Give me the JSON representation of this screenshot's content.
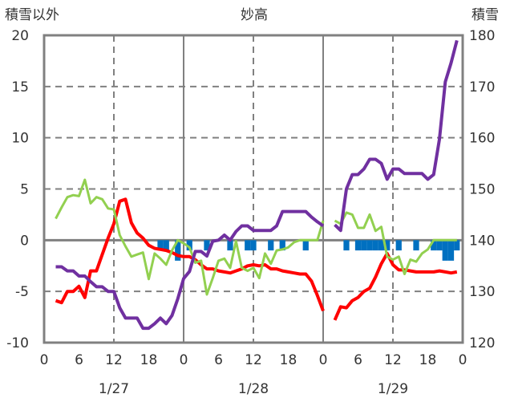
{
  "chart_data": {
    "type": "line",
    "title": "妙高",
    "ylabel_left": "積雪以外",
    "ylabel_right": "積雪",
    "ylim_left": [
      -10,
      20
    ],
    "ylim_right": [
      120,
      180
    ],
    "yticks_left": [
      "20",
      "15",
      "10",
      "5",
      "0",
      "-5",
      "-10"
    ],
    "yticks_right": [
      "180",
      "170",
      "160",
      "150",
      "140",
      "130",
      "120"
    ],
    "xlim_hours": [
      0,
      72
    ],
    "xtick_labels": [
      "0",
      "6",
      "12",
      "18",
      "0",
      "6",
      "12",
      "18",
      "0",
      "6",
      "12",
      "18",
      "0"
    ],
    "date_labels": [
      "1/27",
      "1/28",
      "1/29"
    ],
    "grid": true,
    "x_hours": [
      2,
      3,
      4,
      5,
      6,
      7,
      8,
      9,
      10,
      11,
      12,
      13,
      14,
      15,
      16,
      17,
      18,
      19,
      20,
      21,
      22,
      23,
      24,
      25,
      26,
      27,
      28,
      29,
      30,
      31,
      32,
      33,
      34,
      35,
      36,
      37,
      38,
      39,
      40,
      41,
      42,
      43,
      44,
      45,
      46,
      47,
      48,
      49,
      50,
      51,
      52,
      53,
      54,
      55,
      56,
      57,
      58,
      59,
      60,
      61,
      62,
      63,
      64,
      65,
      66,
      67,
      68,
      69,
      70,
      71
    ],
    "series": [
      {
        "name": "temperature",
        "axis": "left",
        "color": "#ff0000",
        "values": [
          -5.9,
          -6.1,
          -5.0,
          -5.0,
          -4.5,
          -5.6,
          -3.0,
          -3.0,
          -1.4,
          0.2,
          1.6,
          3.8,
          4.0,
          1.7,
          0.7,
          0.2,
          -0.5,
          -0.8,
          -0.9,
          -1.0,
          -1.2,
          -1.5,
          -1.6,
          -1.6,
          -1.9,
          -2.4,
          -2.8,
          -2.8,
          -3.0,
          -3.1,
          -3.2,
          -3.0,
          -2.8,
          -2.5,
          -2.4,
          -2.5,
          -2.4,
          -2.8,
          -2.8,
          -3.0,
          -3.1,
          -3.2,
          -3.3,
          -3.3,
          -4.0,
          -5.4,
          -6.9,
          null,
          -7.8,
          -6.5,
          -6.6,
          -5.9,
          -5.6,
          -5.0,
          -4.7,
          -3.6,
          -2.3,
          -1.3,
          -2.4,
          -2.9,
          -2.9,
          -3.0,
          -3.1,
          -3.1,
          -3.1,
          -3.1,
          -3.0,
          -3.1,
          -3.2,
          -3.1
        ]
      },
      {
        "name": "series-green",
        "axis": "left",
        "color": "#92d050",
        "values": [
          2.1,
          3.2,
          4.2,
          4.4,
          4.3,
          5.9,
          3.6,
          4.2,
          4.0,
          3.1,
          3.0,
          0.5,
          -0.6,
          -1.6,
          -1.4,
          -1.2,
          -3.8,
          -1.3,
          -1.8,
          -2.4,
          -1.0,
          0,
          -0.3,
          -0.7,
          -2.2,
          -2.0,
          -5.3,
          -3.7,
          -2.0,
          -1.8,
          -2.7,
          -0.1,
          -2.7,
          -3.0,
          -2.7,
          -3.7,
          -1.3,
          -2.3,
          -1.0,
          -0.9,
          -0.7,
          -0.2,
          0,
          0,
          0,
          0,
          1.9,
          null,
          1.9,
          1.6,
          2.7,
          2.5,
          1.2,
          1.2,
          2.5,
          0.9,
          1.3,
          -1.6,
          -1.9,
          -1.6,
          -3.3,
          -1.9,
          -2.1,
          -1.3,
          -0.9,
          0,
          0,
          0,
          0,
          0
        ]
      },
      {
        "name": "snow-depth",
        "axis": "right",
        "color": "#7030a0",
        "values": [
          134.8,
          134.8,
          134.0,
          134.0,
          133.0,
          133.0,
          131.9,
          130.9,
          130.9,
          130.0,
          130.0,
          126.8,
          124.8,
          124.8,
          124.8,
          122.8,
          122.8,
          123.7,
          124.8,
          123.7,
          125.3,
          128.6,
          132.5,
          133.9,
          137.8,
          137.8,
          136.9,
          139.8,
          140,
          141,
          140,
          141.7,
          142.8,
          142.8,
          141.9,
          141.9,
          141.9,
          141.9,
          142.8,
          145.6,
          145.6,
          145.6,
          145.6,
          145.6,
          144.5,
          143.6,
          142.8,
          null,
          143,
          141.9,
          150,
          152.8,
          152.8,
          153.9,
          155.8,
          155.8,
          155,
          151.9,
          153.9,
          153.9,
          153,
          153,
          153,
          153,
          151.9,
          152.8,
          159.7,
          170.9,
          174.6,
          179
        ]
      }
    ],
    "bars": {
      "name": "hourly-bars",
      "axis": "left",
      "color": "#0070c0",
      "points": [
        [
          20,
          -1
        ],
        [
          21,
          -1
        ],
        [
          23,
          -2
        ],
        [
          25,
          -1
        ],
        [
          28,
          -1
        ],
        [
          32,
          -1
        ],
        [
          35,
          -1
        ],
        [
          36,
          -1
        ],
        [
          39,
          -1
        ],
        [
          41,
          -1
        ],
        [
          45,
          -1
        ],
        [
          52,
          -1
        ],
        [
          54,
          -1
        ],
        [
          55,
          -1
        ],
        [
          56,
          -1
        ],
        [
          57,
          -1
        ],
        [
          58,
          -1
        ],
        [
          59,
          -1
        ],
        [
          61,
          -1
        ],
        [
          64,
          -1
        ],
        [
          67,
          -1
        ],
        [
          68,
          -1
        ],
        [
          69,
          -2
        ],
        [
          70,
          -2
        ],
        [
          71,
          -1
        ]
      ]
    }
  }
}
